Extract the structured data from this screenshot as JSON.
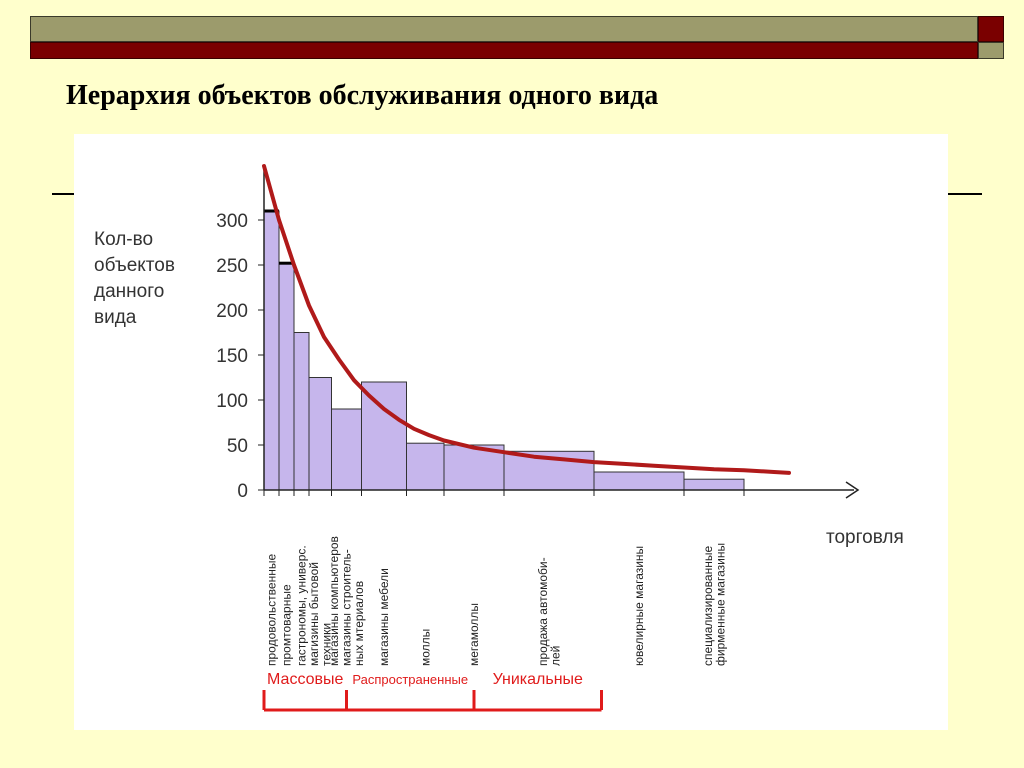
{
  "slide": {
    "title": "Иерархия объектов обслуживания одного вида"
  },
  "colors": {
    "background": "#ffffcc",
    "header_olive": "#9c9b6c",
    "header_maroon": "#7a0000",
    "bar_fill": "#c6b6ec",
    "bar_stroke": "#333333",
    "curve": "#b01a1a",
    "bracket": "#e01b1b"
  },
  "chart_data": {
    "type": "bar",
    "ylabel": [
      "Кол-во",
      "объектов",
      "данного",
      "вида"
    ],
    "xlabel": "торговля",
    "yticks": [
      0,
      50,
      100,
      150,
      200,
      250,
      300
    ],
    "ylim": [
      0,
      360
    ],
    "grid": false,
    "categories": [
      [
        "продовольственные"
      ],
      [
        "промтоварные"
      ],
      [
        "гастрономы, универс."
      ],
      [
        "магизины бытовой",
        "техники"
      ],
      [
        "магазины компьютеров",
        "магазины строитель-",
        "ных мтериалов"
      ],
      [
        "магазины мебели"
      ],
      [
        "моллы"
      ],
      [
        "мегамоллы"
      ],
      [
        "продажа автомоби-",
        "лей"
      ],
      [
        "ювелирные магазины"
      ],
      [
        "специализированные",
        "фирменные магазины"
      ]
    ],
    "values": [
      310,
      252,
      175,
      125,
      90,
      120,
      52,
      50,
      43,
      20,
      12
    ],
    "widths": [
      1,
      1,
      1,
      1.5,
      2,
      3,
      2.5,
      4,
      6,
      6,
      4
    ],
    "curve": {
      "x": [
        0,
        1,
        2,
        3,
        4,
        5,
        6,
        7,
        8,
        9,
        10,
        11,
        12,
        14,
        16,
        18,
        20,
        22,
        24,
        26,
        28,
        30,
        32,
        34,
        35
      ],
      "y": [
        360,
        300,
        250,
        205,
        170,
        145,
        122,
        105,
        90,
        78,
        68,
        61,
        55,
        47,
        42,
        37,
        34,
        31,
        29,
        27,
        25,
        23,
        22,
        20,
        19
      ]
    },
    "groups": [
      {
        "label": "Массовые",
        "from": 0,
        "to": 5.5
      },
      {
        "label": "Распространенные",
        "from": 5.5,
        "to": 14
      },
      {
        "label": "Уникальные",
        "from": 14,
        "to": 22.5
      }
    ]
  }
}
